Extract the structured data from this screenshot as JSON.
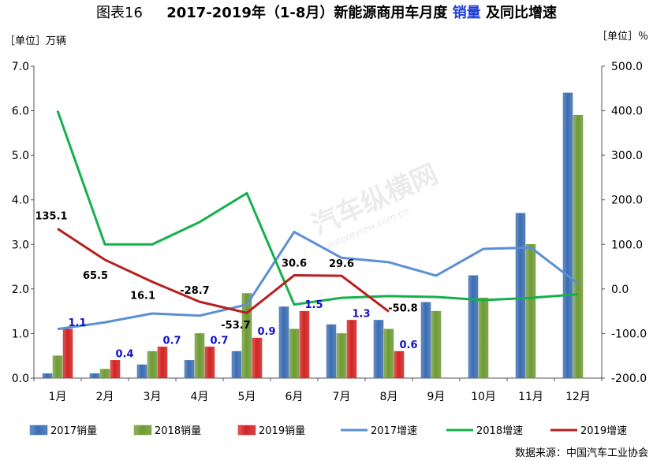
{
  "title": {
    "prefix": "图表16",
    "main_a": "2017-2019年（1-8月）新能源商用车月度",
    "highlight": "销量",
    "main_b": "及同比增速"
  },
  "left_unit": "［单位］万辆",
  "right_unit": "［单位］％",
  "source": "数据来源：中国汽车工业协会",
  "watermark": {
    "brand": "汽车纵横网",
    "url": "autoreview.com.cn"
  },
  "colors": {
    "bar_2017": "#3b6db2",
    "bar_2018": "#6e9a34",
    "bar_2019": "#d22424",
    "line_2017": "#5b8fd4",
    "line_2018": "#14b04c",
    "line_2019": "#b81f1f",
    "label_blue": "#1010cc",
    "label_black": "#000000"
  },
  "chart_data": {
    "type": "bar",
    "categories": [
      "1月",
      "2月",
      "3月",
      "4月",
      "5月",
      "6月",
      "7月",
      "8月",
      "9月",
      "10月",
      "11月",
      "12月"
    ],
    "ylim_left": [
      0,
      7
    ],
    "yticks_left": [
      "0.0",
      "1.0",
      "2.0",
      "3.0",
      "4.0",
      "5.0",
      "6.0",
      "7.0"
    ],
    "ylim_right": [
      -200,
      500
    ],
    "yticks_right": [
      "-200.0",
      "-100.0",
      "0.0",
      "100.0",
      "200.0",
      "300.0",
      "400.0",
      "500.0"
    ],
    "grid": false,
    "legend_position": "bottom",
    "bar_series": [
      {
        "name": "2017销量",
        "values": [
          0.1,
          0.1,
          0.3,
          0.4,
          0.6,
          1.6,
          1.2,
          1.3,
          1.7,
          2.3,
          3.7,
          6.4
        ]
      },
      {
        "name": "2018销量",
        "values": [
          0.5,
          0.2,
          0.6,
          1.0,
          1.9,
          1.1,
          1.0,
          1.1,
          1.5,
          1.8,
          3.0,
          5.9
        ]
      },
      {
        "name": "2019销量",
        "values": [
          1.1,
          0.4,
          0.7,
          0.7,
          0.9,
          1.5,
          1.3,
          0.6,
          null,
          null,
          null,
          null
        ]
      }
    ],
    "line_series": [
      {
        "name": "2017增速",
        "values": [
          -90,
          -75,
          -55,
          -60,
          -35,
          128,
          70,
          60,
          30,
          90,
          93,
          12
        ]
      },
      {
        "name": "2018增速",
        "values": [
          400,
          100,
          100,
          150,
          215,
          -35,
          -20,
          -16,
          -18,
          -25,
          -20,
          -12
        ]
      },
      {
        "name": "2019增速",
        "values": [
          135.1,
          65.5,
          16.1,
          -28.7,
          -53.7,
          30.6,
          29.6,
          -50.8,
          null,
          null,
          null,
          null
        ]
      }
    ],
    "bar_labels_2019": [
      "1.1",
      "0.4",
      "0.7",
      "0.7",
      "0.9",
      "1.5",
      "1.3",
      "0.6"
    ],
    "line_labels_2019": [
      "135.1",
      "65.5",
      "16.1",
      "-28.7",
      "-53.7",
      "30.6",
      "29.6",
      "-50.8"
    ]
  }
}
